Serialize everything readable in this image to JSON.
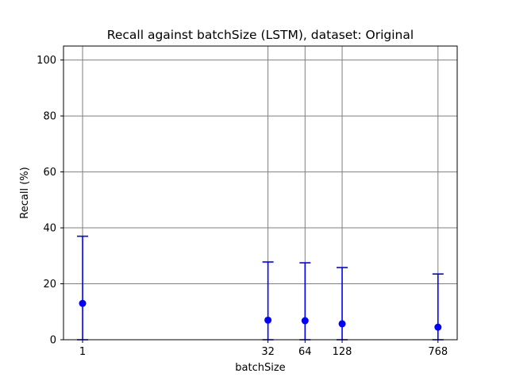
{
  "chart_data": {
    "type": "scatter",
    "title": "Recall against batchSize (LSTM), dataset: Original",
    "xlabel": "batchSize",
    "ylabel": "Recall (%)",
    "x_scale": "log",
    "xlim": [
      0.7,
      1100
    ],
    "ylim": [
      0,
      105
    ],
    "grid": true,
    "x_ticks": [
      {
        "value": 1,
        "label": "1"
      },
      {
        "value": 32,
        "label": "32"
      },
      {
        "value": 64,
        "label": "64"
      },
      {
        "value": 128,
        "label": "128"
      },
      {
        "value": 768,
        "label": "768"
      }
    ],
    "y_ticks": [
      {
        "value": 0,
        "label": "0"
      },
      {
        "value": 20,
        "label": "20"
      },
      {
        "value": 40,
        "label": "40"
      },
      {
        "value": 60,
        "label": "60"
      },
      {
        "value": 80,
        "label": "80"
      },
      {
        "value": 100,
        "label": "100"
      }
    ],
    "series": [
      {
        "color": "#0000ff",
        "points": [
          {
            "x": 1,
            "y": 13.0,
            "err_low": 0,
            "err_high": 37.0
          },
          {
            "x": 32,
            "y": 7.0,
            "err_low": 0,
            "err_high": 27.8
          },
          {
            "x": 64,
            "y": 6.8,
            "err_low": 0,
            "err_high": 27.5
          },
          {
            "x": 128,
            "y": 5.7,
            "err_low": 0,
            "err_high": 25.8
          },
          {
            "x": 768,
            "y": 4.5,
            "err_low": 0,
            "err_high": 23.5
          }
        ]
      }
    ]
  }
}
